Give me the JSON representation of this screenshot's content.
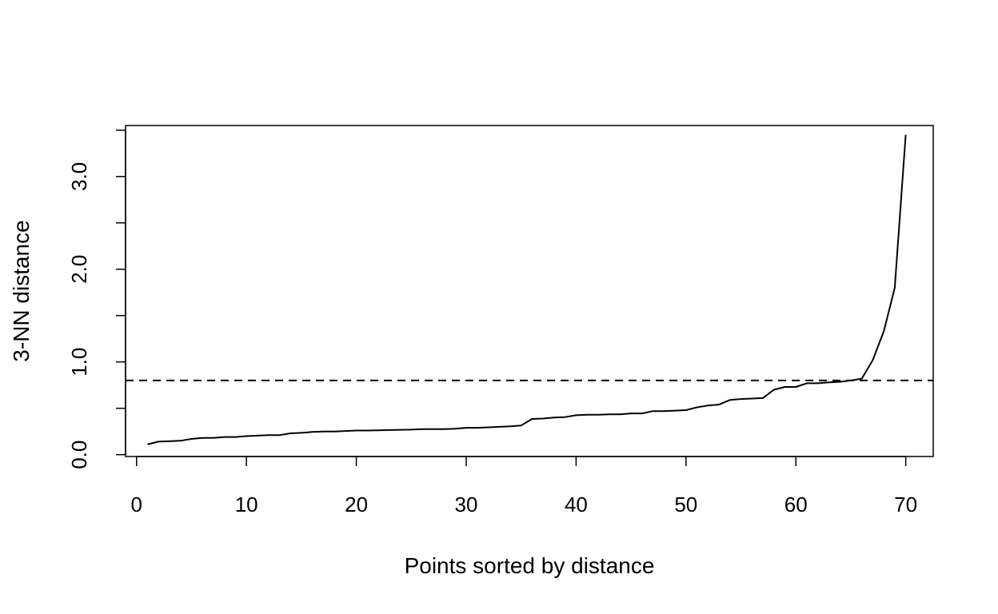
{
  "chart_data": {
    "type": "line",
    "title": "",
    "xlabel": "Points sorted by distance",
    "ylabel": "3-NN distance",
    "xlim": [
      -1,
      72.5
    ],
    "ylim": [
      -0.02,
      3.55
    ],
    "x_ticks": [
      0,
      10,
      20,
      30,
      40,
      50,
      60,
      70
    ],
    "x_tick_labels": [
      "0",
      "10",
      "20",
      "30",
      "40",
      "50",
      "60",
      "70"
    ],
    "y_ticks": [
      0,
      0.5,
      1,
      1.5,
      2,
      2.5,
      3,
      3.5
    ],
    "y_tick_labels": [
      "0.0",
      "",
      "1.0",
      "",
      "2.0",
      "",
      "3.0",
      ""
    ],
    "grid": false,
    "legend": "none",
    "reference_line": {
      "y": 0.8,
      "style": "dashed"
    },
    "series": [
      {
        "x": [
          1,
          2,
          3,
          4,
          5,
          6,
          7,
          8,
          9,
          10,
          11,
          12,
          13,
          14,
          15,
          16,
          17,
          18,
          19,
          20,
          21,
          22,
          23,
          24,
          25,
          26,
          27,
          28,
          29,
          30,
          31,
          32,
          33,
          34,
          35,
          36,
          37,
          38,
          39,
          40,
          41,
          42,
          43,
          44,
          45,
          46,
          47,
          48,
          49,
          50,
          51,
          52,
          53,
          54,
          55,
          56,
          57,
          58,
          59,
          60,
          61,
          62,
          63,
          64,
          65,
          66,
          67,
          68,
          69,
          70
        ],
        "values": [
          0.11,
          0.14,
          0.145,
          0.15,
          0.17,
          0.18,
          0.18,
          0.19,
          0.19,
          0.2,
          0.205,
          0.21,
          0.21,
          0.23,
          0.235,
          0.245,
          0.25,
          0.25,
          0.255,
          0.26,
          0.26,
          0.262,
          0.265,
          0.268,
          0.27,
          0.275,
          0.275,
          0.275,
          0.28,
          0.29,
          0.29,
          0.295,
          0.3,
          0.305,
          0.315,
          0.385,
          0.39,
          0.4,
          0.405,
          0.425,
          0.43,
          0.43,
          0.435,
          0.435,
          0.445,
          0.445,
          0.47,
          0.47,
          0.475,
          0.48,
          0.51,
          0.53,
          0.54,
          0.59,
          0.6,
          0.605,
          0.61,
          0.7,
          0.73,
          0.73,
          0.77,
          0.77,
          0.78,
          0.785,
          0.8,
          0.82,
          1.02,
          1.33,
          1.8,
          3.45
        ]
      }
    ]
  }
}
